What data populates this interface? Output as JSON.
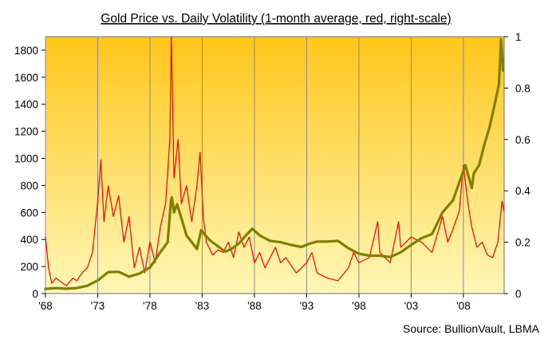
{
  "chart_data": {
    "type": "line",
    "title": "Gold Price vs. Daily Volatility  (1-month average, red, right-scale)",
    "source": "Source:  BullionVault, LBMA",
    "x_tick_labels": [
      "'68",
      "'73",
      "'78",
      "'83",
      "'88",
      "'93",
      "'98",
      "'03",
      "'08"
    ],
    "x_tick_years": [
      1968,
      1973,
      1978,
      1983,
      1988,
      1993,
      1998,
      2003,
      2008
    ],
    "xlim": [
      1968,
      2011.9
    ],
    "y_left": {
      "lim": [
        0,
        1900
      ],
      "ticks": [
        0,
        200,
        400,
        600,
        800,
        1000,
        1200,
        1400,
        1600,
        1800
      ]
    },
    "y_right": {
      "lim": [
        0,
        1
      ],
      "ticks": [
        "0",
        "0.2",
        "0.4",
        "0.6",
        "0.8",
        "1"
      ],
      "tick_values": [
        0,
        0.2,
        0.4,
        0.6,
        0.8,
        1
      ]
    },
    "series": [
      {
        "axis": "left",
        "color": "#808000",
        "points": [
          [
            1968,
            35
          ],
          [
            1969,
            41
          ],
          [
            1970,
            36
          ],
          [
            1971,
            41
          ],
          [
            1972,
            58
          ],
          [
            1973,
            97
          ],
          [
            1974,
            159
          ],
          [
            1975,
            161
          ],
          [
            1976,
            125
          ],
          [
            1977,
            148
          ],
          [
            1978,
            193
          ],
          [
            1979,
            307
          ],
          [
            1979.7,
            380
          ],
          [
            1980.0,
            680
          ],
          [
            1980.1,
            712
          ],
          [
            1980.3,
            600
          ],
          [
            1980.6,
            660
          ],
          [
            1981.0,
            560
          ],
          [
            1981.5,
            430
          ],
          [
            1982.0,
            380
          ],
          [
            1982.5,
            330
          ],
          [
            1982.9,
            470
          ],
          [
            1983.3,
            430
          ],
          [
            1983.8,
            390
          ],
          [
            1984.5,
            350
          ],
          [
            1985.2,
            310
          ],
          [
            1985.8,
            330
          ],
          [
            1986.5,
            370
          ],
          [
            1987.3,
            440
          ],
          [
            1987.8,
            480
          ],
          [
            1988.5,
            430
          ],
          [
            1989.5,
            390
          ],
          [
            1990.5,
            380
          ],
          [
            1991.5,
            360
          ],
          [
            1992.5,
            345
          ],
          [
            1993.3,
            370
          ],
          [
            1994,
            385
          ],
          [
            1995,
            385
          ],
          [
            1996,
            390
          ],
          [
            1997,
            335
          ],
          [
            1998,
            295
          ],
          [
            1999,
            280
          ],
          [
            2000,
            280
          ],
          [
            2001,
            270
          ],
          [
            2002,
            305
          ],
          [
            2003,
            360
          ],
          [
            2004,
            410
          ],
          [
            2005,
            440
          ],
          [
            2006,
            600
          ],
          [
            2007,
            690
          ],
          [
            2008.2,
            950
          ],
          [
            2008.8,
            780
          ],
          [
            2009,
            890
          ],
          [
            2009.5,
            950
          ],
          [
            2010,
            1100
          ],
          [
            2010.5,
            1230
          ],
          [
            2011,
            1400
          ],
          [
            2011.4,
            1550
          ],
          [
            2011.6,
            1880
          ],
          [
            2011.8,
            1650
          ]
        ]
      },
      {
        "axis": "right",
        "color": "#ff0000",
        "points": [
          [
            1968,
            0.22
          ],
          [
            1968.3,
            0.1
          ],
          [
            1968.6,
            0.04
          ],
          [
            1969,
            0.06
          ],
          [
            1970,
            0.03
          ],
          [
            1970.6,
            0.06
          ],
          [
            1971,
            0.05
          ],
          [
            1971.5,
            0.08
          ],
          [
            1972,
            0.1
          ],
          [
            1972.5,
            0.16
          ],
          [
            1973,
            0.36
          ],
          [
            1973.3,
            0.52
          ],
          [
            1973.6,
            0.28
          ],
          [
            1974,
            0.42
          ],
          [
            1974.5,
            0.3
          ],
          [
            1975,
            0.38
          ],
          [
            1975.5,
            0.2
          ],
          [
            1976,
            0.3
          ],
          [
            1976.5,
            0.1
          ],
          [
            1977,
            0.18
          ],
          [
            1977.5,
            0.08
          ],
          [
            1978,
            0.2
          ],
          [
            1978.5,
            0.12
          ],
          [
            1979,
            0.26
          ],
          [
            1979.5,
            0.35
          ],
          [
            1979.9,
            0.6
          ],
          [
            1980.05,
            1.0
          ],
          [
            1980.3,
            0.45
          ],
          [
            1980.7,
            0.6
          ],
          [
            1981,
            0.35
          ],
          [
            1981.5,
            0.42
          ],
          [
            1982,
            0.28
          ],
          [
            1982.5,
            0.42
          ],
          [
            1982.8,
            0.55
          ],
          [
            1983.1,
            0.3
          ],
          [
            1983.4,
            0.2
          ],
          [
            1984,
            0.15
          ],
          [
            1984.5,
            0.17
          ],
          [
            1985,
            0.16
          ],
          [
            1985.5,
            0.2
          ],
          [
            1986,
            0.14
          ],
          [
            1986.5,
            0.24
          ],
          [
            1987,
            0.18
          ],
          [
            1987.5,
            0.22
          ],
          [
            1988,
            0.12
          ],
          [
            1988.5,
            0.16
          ],
          [
            1989,
            0.1
          ],
          [
            1990,
            0.18
          ],
          [
            1990.5,
            0.12
          ],
          [
            1991,
            0.14
          ],
          [
            1992,
            0.08
          ],
          [
            1993,
            0.12
          ],
          [
            1993.5,
            0.16
          ],
          [
            1994,
            0.08
          ],
          [
            1995,
            0.06
          ],
          [
            1996,
            0.05
          ],
          [
            1997,
            0.1
          ],
          [
            1997.5,
            0.16
          ],
          [
            1998,
            0.12
          ],
          [
            1999,
            0.14
          ],
          [
            1999.8,
            0.28
          ],
          [
            2000,
            0.16
          ],
          [
            2001,
            0.12
          ],
          [
            2001.8,
            0.28
          ],
          [
            2002,
            0.18
          ],
          [
            2003,
            0.22
          ],
          [
            2004,
            0.2
          ],
          [
            2005,
            0.16
          ],
          [
            2006,
            0.3
          ],
          [
            2006.5,
            0.2
          ],
          [
            2007,
            0.25
          ],
          [
            2007.6,
            0.32
          ],
          [
            2008,
            0.5
          ],
          [
            2008.4,
            0.36
          ],
          [
            2008.8,
            0.26
          ],
          [
            2009.3,
            0.18
          ],
          [
            2009.8,
            0.2
          ],
          [
            2010.3,
            0.15
          ],
          [
            2010.8,
            0.14
          ],
          [
            2011.3,
            0.2
          ],
          [
            2011.7,
            0.36
          ],
          [
            2011.9,
            0.32
          ]
        ]
      }
    ]
  }
}
